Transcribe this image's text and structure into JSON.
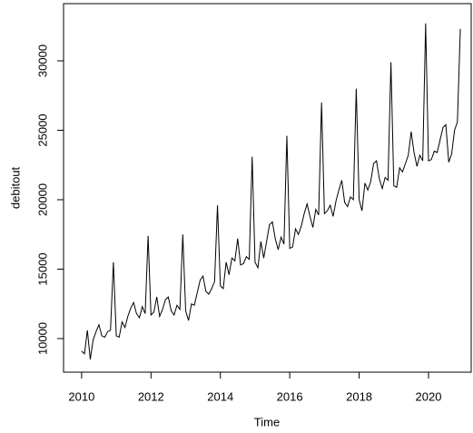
{
  "chart_data": {
    "type": "line",
    "x_label": "Time",
    "y_label": "debitout",
    "x": [
      2010,
      2010.083,
      2010.167,
      2010.25,
      2010.333,
      2010.417,
      2010.5,
      2010.583,
      2010.667,
      2010.75,
      2010.833,
      2010.917,
      2011,
      2011.083,
      2011.167,
      2011.25,
      2011.333,
      2011.417,
      2011.5,
      2011.583,
      2011.667,
      2011.75,
      2011.833,
      2011.917,
      2012,
      2012.083,
      2012.167,
      2012.25,
      2012.333,
      2012.417,
      2012.5,
      2012.583,
      2012.667,
      2012.75,
      2012.833,
      2012.917,
      2013,
      2013.083,
      2013.167,
      2013.25,
      2013.333,
      2013.417,
      2013.5,
      2013.583,
      2013.667,
      2013.75,
      2013.833,
      2013.917,
      2014,
      2014.083,
      2014.167,
      2014.25,
      2014.333,
      2014.417,
      2014.5,
      2014.583,
      2014.667,
      2014.75,
      2014.833,
      2014.917,
      2015,
      2015.083,
      2015.167,
      2015.25,
      2015.333,
      2015.417,
      2015.5,
      2015.583,
      2015.667,
      2015.75,
      2015.833,
      2015.917,
      2016,
      2016.083,
      2016.167,
      2016.25,
      2016.333,
      2016.417,
      2016.5,
      2016.583,
      2016.667,
      2016.75,
      2016.833,
      2016.917,
      2017,
      2017.083,
      2017.167,
      2017.25,
      2017.333,
      2017.417,
      2017.5,
      2017.583,
      2017.667,
      2017.75,
      2017.833,
      2017.917,
      2018,
      2018.083,
      2018.167,
      2018.25,
      2018.333,
      2018.417,
      2018.5,
      2018.583,
      2018.667,
      2018.75,
      2018.833,
      2018.917,
      2019,
      2019.083,
      2019.167,
      2019.25,
      2019.333,
      2019.417,
      2019.5,
      2019.583,
      2019.667,
      2019.75,
      2019.833,
      2019.917,
      2020,
      2020.083,
      2020.167,
      2020.25,
      2020.333,
      2020.417,
      2020.5,
      2020.583,
      2020.667,
      2020.75,
      2020.833,
      2020.917
    ],
    "series": [
      {
        "color": "#000000",
        "values": [
          9100,
          8900,
          10600,
          8500,
          9900,
          10500,
          11000,
          10200,
          10100,
          10500,
          10600,
          15500,
          10200,
          10100,
          11200,
          10800,
          11600,
          12200,
          12600,
          11800,
          11500,
          12300,
          11800,
          17400,
          11700,
          11900,
          13000,
          11600,
          12100,
          12800,
          13000,
          12000,
          11700,
          12400,
          12100,
          17500,
          12000,
          11300,
          12500,
          12400,
          13300,
          14200,
          14500,
          13400,
          13200,
          13600,
          14100,
          19600,
          13800,
          13600,
          15500,
          14600,
          15800,
          15600,
          17200,
          15300,
          15400,
          15900,
          15700,
          23100,
          15500,
          15100,
          17000,
          15800,
          17000,
          18200,
          18400,
          17200,
          16400,
          17300,
          16800,
          24600,
          16500,
          16600,
          17900,
          17500,
          18100,
          19000,
          19700,
          18800,
          18000,
          19300,
          18900,
          27000,
          19000,
          19200,
          19600,
          18800,
          19900,
          20700,
          21400,
          19800,
          19500,
          20200,
          20000,
          28000,
          20000,
          19200,
          21200,
          20700,
          21300,
          22600,
          22800,
          21500,
          20800,
          21600,
          21400,
          29900,
          21000,
          20900,
          22300,
          22000,
          22600,
          23200,
          24900,
          23400,
          22400,
          23200,
          22800,
          32700,
          22800,
          22900,
          23500,
          23400,
          24300,
          25200,
          25400,
          22700,
          23300,
          25000,
          25600,
          32300
        ]
      }
    ],
    "xlim": [
      2009.48,
      2021.23
    ],
    "ylim": [
      7580,
      34120
    ],
    "xticks": [
      2010,
      2012,
      2014,
      2016,
      2018,
      2020
    ],
    "yticks": [
      10000,
      15000,
      20000,
      25000,
      30000
    ]
  }
}
